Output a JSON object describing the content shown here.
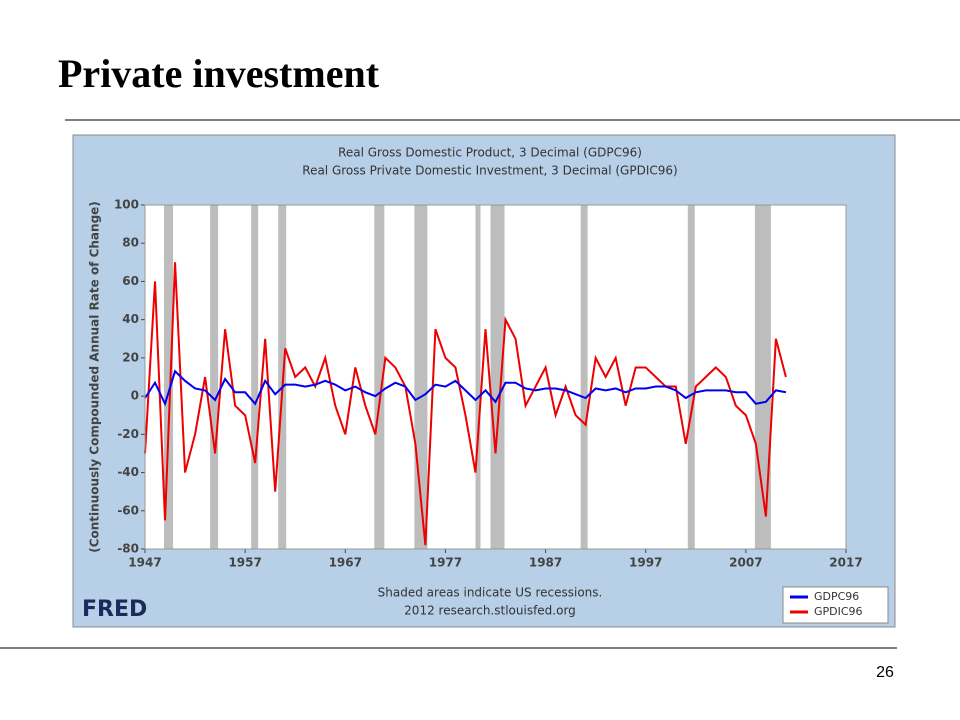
{
  "slide_title": "Private investment",
  "page_number": "26",
  "chart_data": {
    "type": "line",
    "title": "Real Gross Domestic Product, 3 Decimal (GDPC96)",
    "subtitle": "Real Gross Private Domestic Investment, 3 Decimal (GPDIC96)",
    "y_label": "(Continuously Compounded Annual Rate of Change)",
    "note": [
      "Shaded areas indicate US recessions.",
      "2012 research.stlouisfed.org"
    ],
    "source_logo": "FRED",
    "x": [
      1947,
      1948,
      1949,
      1950,
      1951,
      1952,
      1953,
      1954,
      1955,
      1956,
      1957,
      1958,
      1959,
      1960,
      1961,
      1962,
      1963,
      1964,
      1965,
      1966,
      1967,
      1968,
      1969,
      1970,
      1971,
      1972,
      1973,
      1974,
      1975,
      1976,
      1977,
      1978,
      1979,
      1980,
      1981,
      1982,
      1983,
      1984,
      1985,
      1986,
      1987,
      1988,
      1989,
      1990,
      1991,
      1992,
      1993,
      1994,
      1995,
      1996,
      1997,
      1998,
      1999,
      2000,
      2001,
      2002,
      2003,
      2004,
      2005,
      2006,
      2007,
      2008,
      2009,
      2010,
      2011
    ],
    "series": [
      {
        "name": "GDPC96",
        "color": "#0000ee",
        "values": [
          -1,
          7,
          -4,
          13,
          8,
          4,
          3,
          -2,
          9,
          2,
          2,
          -4,
          8,
          1,
          6,
          6,
          5,
          6,
          8,
          6,
          3,
          5,
          2,
          0,
          4,
          7,
          5,
          -2,
          1,
          6,
          5,
          8,
          3,
          -2,
          3,
          -3,
          7,
          7,
          4,
          3,
          4,
          4,
          3,
          1,
          -1,
          4,
          3,
          4,
          2,
          4,
          4,
          5,
          5,
          3,
          -1,
          2,
          3,
          3,
          3,
          2,
          2,
          -4,
          -3,
          3,
          2
        ]
      },
      {
        "name": "GPDIC96",
        "color": "#ee0000",
        "values": [
          -30,
          60,
          -65,
          70,
          -40,
          -20,
          10,
          -30,
          35,
          -5,
          -10,
          -35,
          30,
          -50,
          25,
          10,
          15,
          5,
          20,
          -5,
          -20,
          15,
          -5,
          -20,
          20,
          15,
          5,
          -25,
          -78,
          35,
          20,
          15,
          -10,
          -40,
          35,
          -30,
          40,
          30,
          -5,
          5,
          15,
          -10,
          5,
          -10,
          -15,
          20,
          10,
          20,
          -5,
          15,
          15,
          10,
          5,
          5,
          -25,
          5,
          10,
          15,
          10,
          -5,
          -10,
          -25,
          -63,
          30,
          10
        ]
      }
    ],
    "recessions": [
      [
        1948.9,
        1949.8
      ],
      [
        1953.5,
        1954.3
      ],
      [
        1957.6,
        1958.3
      ],
      [
        1960.3,
        1961.1
      ],
      [
        1969.9,
        1970.9
      ],
      [
        1973.9,
        1975.2
      ],
      [
        1980.0,
        1980.5
      ],
      [
        1981.5,
        1982.9
      ],
      [
        1990.5,
        1991.2
      ],
      [
        2001.2,
        2001.9
      ],
      [
        2007.9,
        2009.5
      ]
    ],
    "recession_color": "#bdbdbd",
    "xlim": [
      1947,
      2017
    ],
    "xticks": [
      1947,
      1957,
      1967,
      1977,
      1987,
      1997,
      2007,
      2017
    ],
    "ylim": [
      -80,
      100
    ],
    "yticks": [
      -80,
      -60,
      -40,
      -20,
      0,
      20,
      40,
      60,
      80,
      100
    ],
    "legend": "lower right"
  }
}
